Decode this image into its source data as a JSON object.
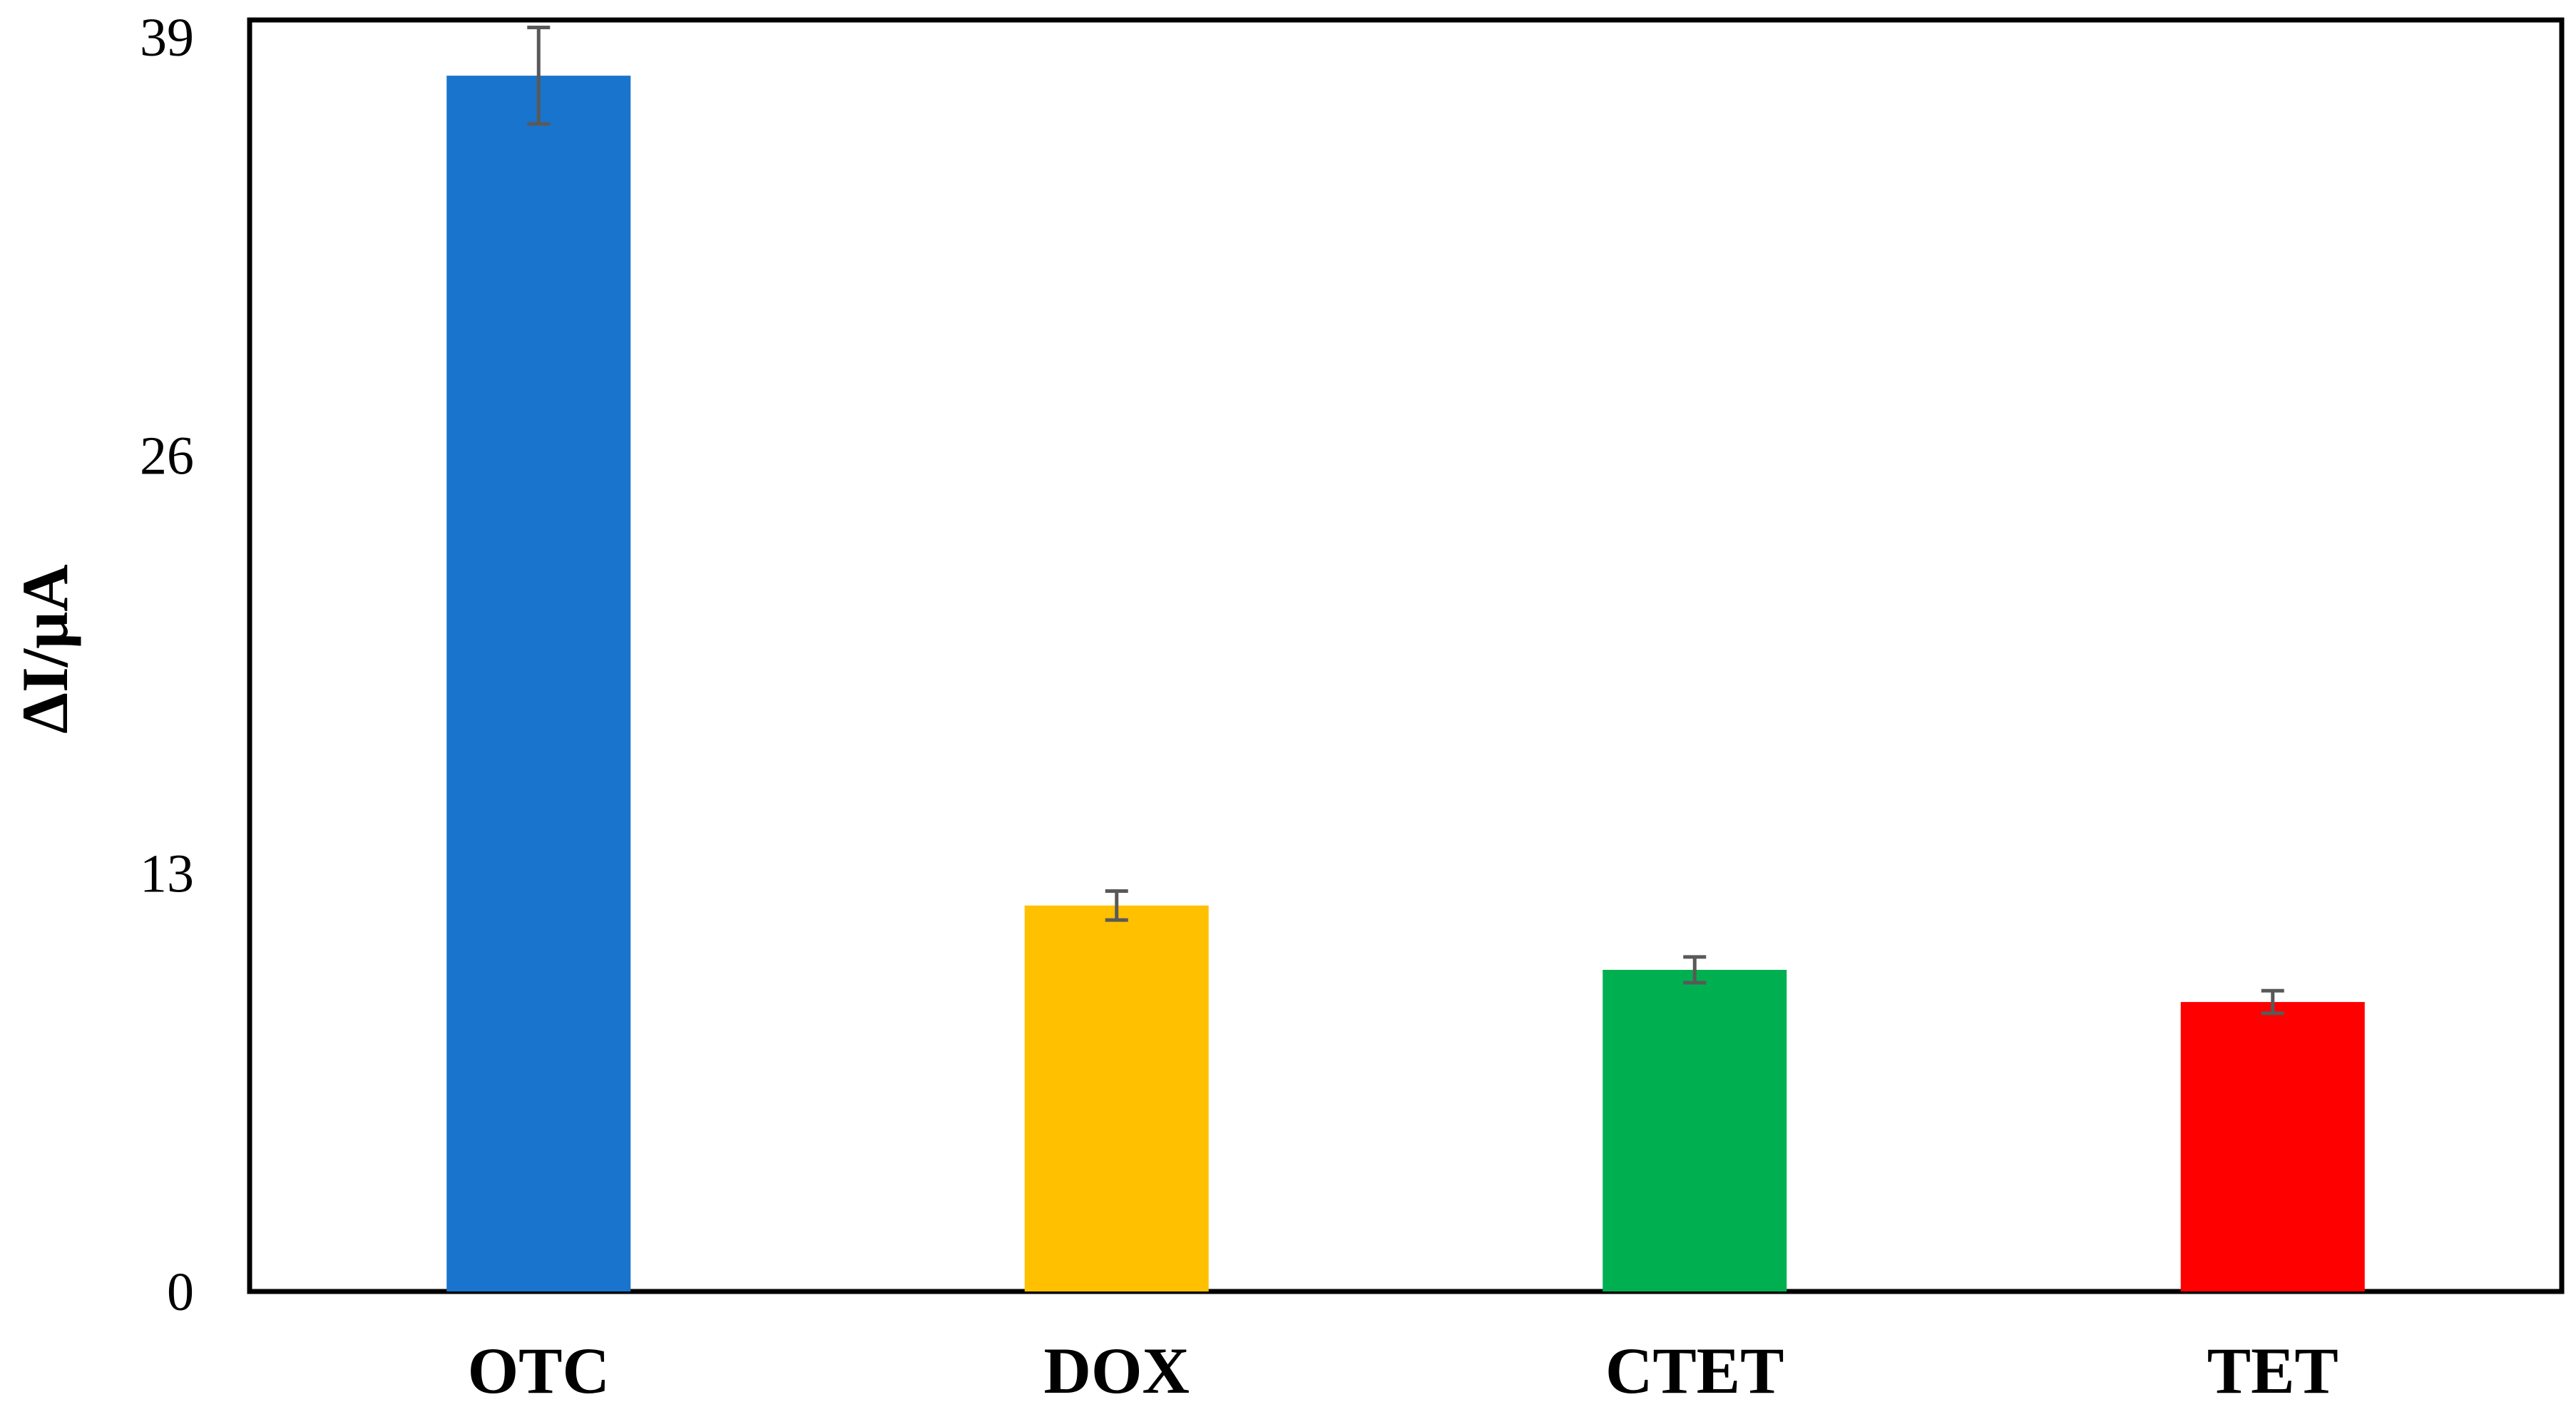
{
  "chart_data": {
    "type": "bar",
    "title": "",
    "xlabel": "",
    "ylabel": "ΔI/μA",
    "ylim": [
      0,
      39
    ],
    "yticks": [
      0,
      13,
      26,
      39
    ],
    "grid": false,
    "legend": "none",
    "categories": [
      "OTC",
      "DOX",
      "CTET",
      "TET"
    ],
    "values": [
      37.8,
      12.0,
      10.0,
      9.0
    ],
    "errors": [
      1.5,
      0.45,
      0.4,
      0.35
    ],
    "colors": [
      "#1874CD",
      "#FFC000",
      "#00B050",
      "#FF0000"
    ],
    "error_bar_color": "#595959",
    "axis_color": "#000000"
  }
}
